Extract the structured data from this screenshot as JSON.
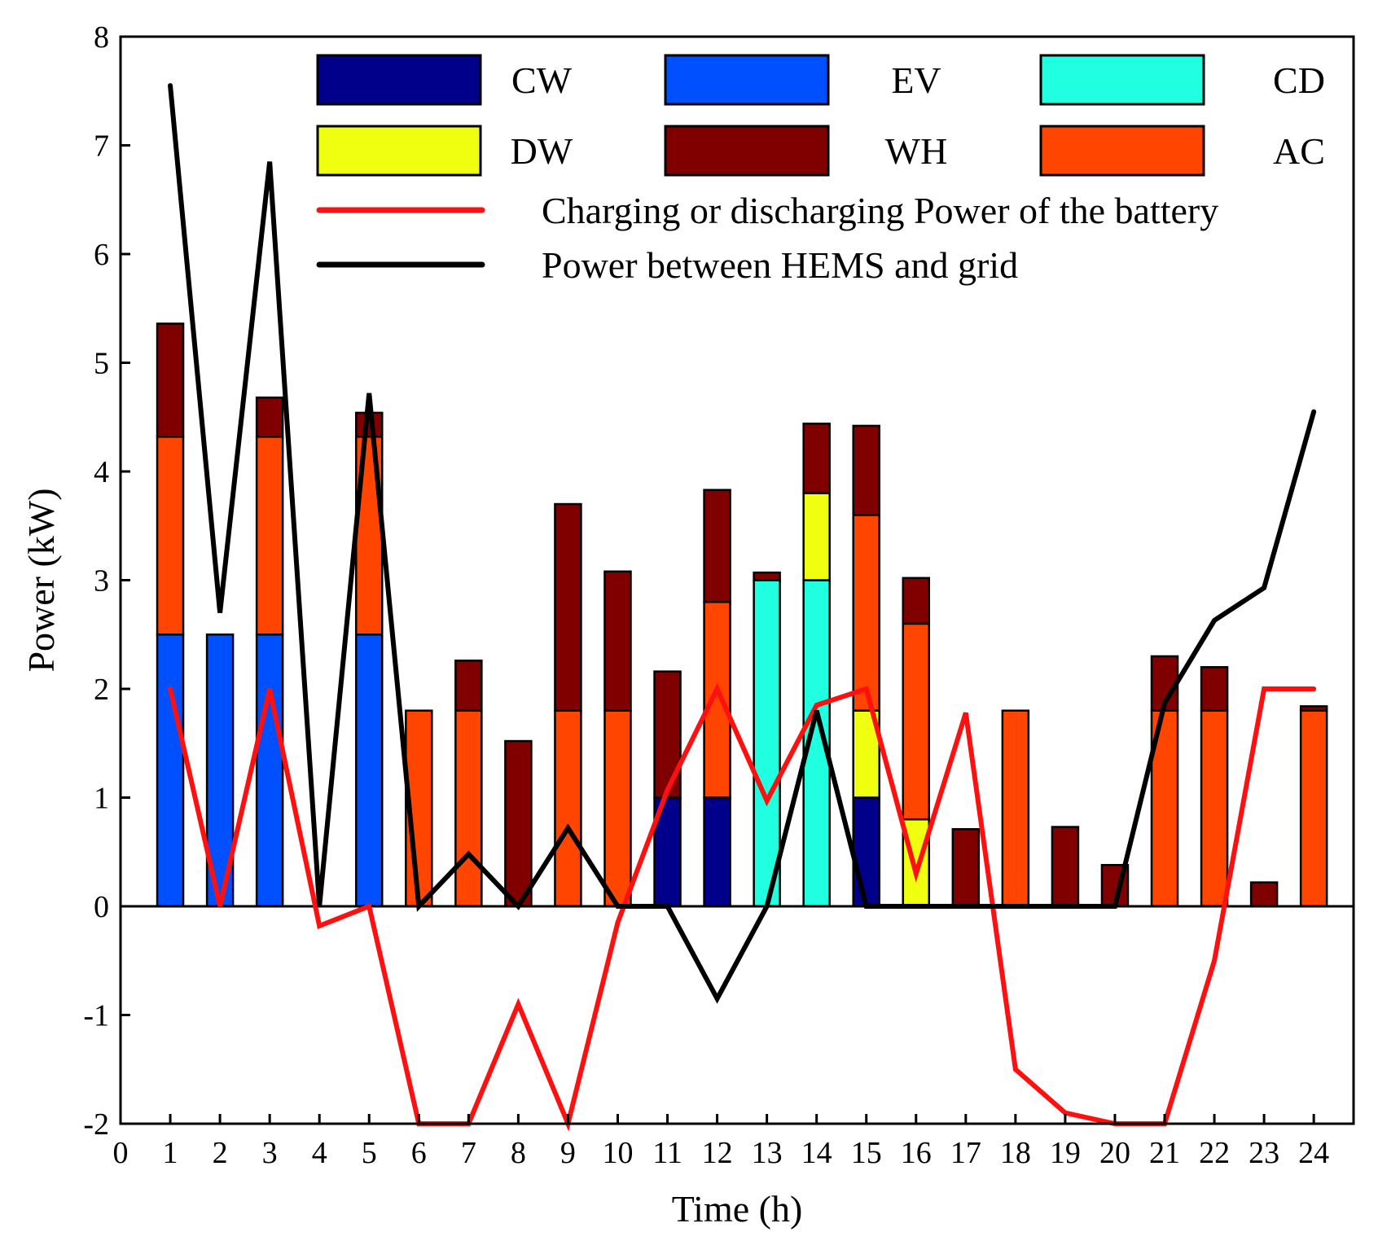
{
  "chart_data": {
    "type": "bar",
    "stacked": true,
    "xlabel": "Time (h)",
    "ylabel": "Power (kW)",
    "xlim": [
      0,
      24.8
    ],
    "ylim": [
      -2,
      8
    ],
    "x_ticks": [
      0,
      1,
      2,
      3,
      4,
      5,
      6,
      7,
      8,
      9,
      10,
      11,
      12,
      13,
      14,
      15,
      16,
      17,
      18,
      19,
      20,
      21,
      22,
      23,
      24
    ],
    "y_ticks": [
      -2,
      -1,
      0,
      1,
      2,
      3,
      4,
      5,
      6,
      7,
      8
    ],
    "grid": false,
    "legend_position": "top",
    "categories": [
      1,
      2,
      3,
      4,
      5,
      6,
      7,
      8,
      9,
      10,
      11,
      12,
      13,
      14,
      15,
      16,
      17,
      18,
      19,
      20,
      21,
      22,
      23,
      24
    ],
    "bar_series": [
      {
        "name": "CW",
        "color": "#00008B",
        "values": [
          0,
          0,
          0,
          0,
          0,
          0,
          0,
          0,
          0,
          0,
          1,
          1,
          0,
          0,
          1,
          0,
          0,
          0,
          0,
          0,
          0,
          0,
          0,
          0
        ]
      },
      {
        "name": "EV",
        "color": "#0050FF",
        "values": [
          2.5,
          2.5,
          2.5,
          0,
          2.5,
          0,
          0,
          0,
          0,
          0,
          0,
          0,
          0,
          0,
          0,
          0,
          0,
          0,
          0,
          0,
          0,
          0,
          0,
          0
        ]
      },
      {
        "name": "CD",
        "color": "#20FFE0",
        "values": [
          0,
          0,
          0,
          0,
          0,
          0,
          0,
          0,
          0,
          0,
          0,
          0,
          3,
          3,
          0,
          0,
          0,
          0,
          0,
          0,
          0,
          0,
          0,
          0
        ]
      },
      {
        "name": "DW",
        "color": "#F0FF10",
        "values": [
          0,
          0,
          0,
          0,
          0,
          0,
          0,
          0,
          0,
          0,
          0,
          0,
          0,
          0.8,
          0.8,
          0.8,
          0,
          0,
          0,
          0,
          0,
          0,
          0,
          0
        ]
      },
      {
        "name": "AC",
        "color": "#FF4500",
        "values": [
          1.82,
          0,
          1.82,
          0,
          1.82,
          1.8,
          1.8,
          0,
          1.8,
          1.8,
          0,
          1.8,
          0,
          0,
          1.8,
          1.8,
          0,
          1.8,
          0,
          0,
          1.8,
          1.8,
          0,
          1.8
        ]
      },
      {
        "name": "WH",
        "color": "#800000",
        "values": [
          1.04,
          0,
          0.36,
          0,
          0.22,
          0,
          0.46,
          1.52,
          1.9,
          1.28,
          1.16,
          1.03,
          0.07,
          0.64,
          0.82,
          0.42,
          0.71,
          0,
          0.73,
          0.38,
          0.5,
          0.4,
          0.22,
          0.04
        ]
      }
    ],
    "legend_order": [
      "CW",
      "EV",
      "CD",
      "DW",
      "WH",
      "AC"
    ],
    "line_series": [
      {
        "name": "Charging or discharging Power of the battery",
        "color": "#FF1010",
        "x": [
          1,
          2,
          3,
          4,
          5,
          6,
          7,
          8,
          9,
          10,
          11,
          12,
          13,
          14,
          15,
          16,
          17,
          18,
          19,
          20,
          21,
          22,
          23,
          24
        ],
        "values": [
          2.0,
          0.0,
          2.0,
          -0.18,
          0.0,
          -2.0,
          -2.0,
          -0.9,
          -2.0,
          -0.15,
          1.07,
          2.0,
          0.97,
          1.85,
          2.0,
          0.3,
          1.78,
          -1.5,
          -1.9,
          -2.0,
          -2.0,
          -0.5,
          2.0,
          2.0
        ]
      },
      {
        "name": "Power between HEMS and grid",
        "color": "#000000",
        "x": [
          1,
          2,
          3,
          4,
          5,
          6,
          7,
          8,
          9,
          10,
          11,
          12,
          13,
          14,
          15,
          16,
          17,
          18,
          19,
          20,
          21,
          22,
          23,
          24
        ],
        "values": [
          7.55,
          2.7,
          6.85,
          0.0,
          4.72,
          0.0,
          0.48,
          0.0,
          0.72,
          0.0,
          0.0,
          -0.85,
          0.0,
          1.8,
          0.0,
          0.0,
          0.0,
          0.0,
          0.0,
          0.0,
          1.87,
          2.63,
          2.93,
          4.55
        ]
      }
    ]
  }
}
